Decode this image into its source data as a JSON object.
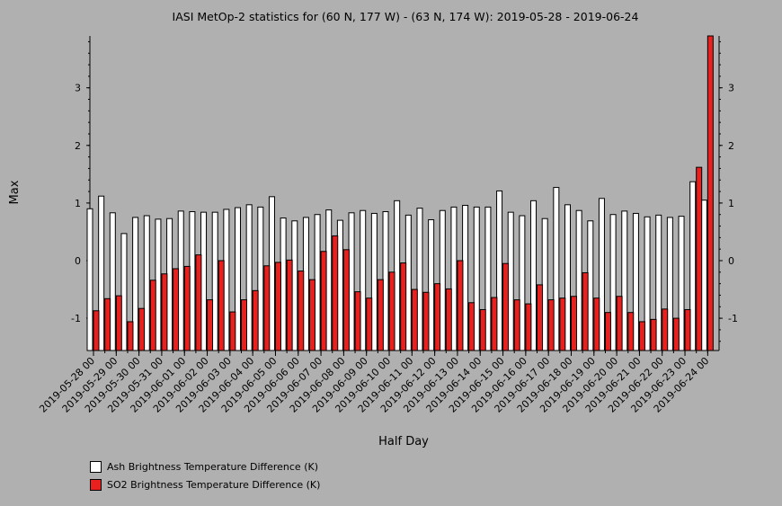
{
  "chart_data": {
    "type": "bar",
    "title": "IASI MetOp-2 statistics for (60 N, 177 W) - (63 N, 174 W): 2019-05-28 - 2019-06-24",
    "xlabel": "Half Day",
    "ylabel": "Max",
    "ylim": [
      -1.56,
      3.9
    ],
    "yticks": [
      -1,
      0,
      1,
      2,
      3
    ],
    "grid": false,
    "legend_position": "bottom-left",
    "categories": [
      "2019-05-28 00",
      "2019-05-28 12",
      "2019-05-29 00",
      "2019-05-29 12",
      "2019-05-30 00",
      "2019-05-30 12",
      "2019-05-31 00",
      "2019-05-31 12",
      "2019-06-01 00",
      "2019-06-01 12",
      "2019-06-02 00",
      "2019-06-02 12",
      "2019-06-03 00",
      "2019-06-03 12",
      "2019-06-04 00",
      "2019-06-04 12",
      "2019-06-05 00",
      "2019-06-05 12",
      "2019-06-06 00",
      "2019-06-06 12",
      "2019-06-07 00",
      "2019-06-07 12",
      "2019-06-08 00",
      "2019-06-08 12",
      "2019-06-09 00",
      "2019-06-09 12",
      "2019-06-10 00",
      "2019-06-10 12",
      "2019-06-11 00",
      "2019-06-11 12",
      "2019-06-12 00",
      "2019-06-12 12",
      "2019-06-13 00",
      "2019-06-13 12",
      "2019-06-14 00",
      "2019-06-14 12",
      "2019-06-15 00",
      "2019-06-15 12",
      "2019-06-16 00",
      "2019-06-16 12",
      "2019-06-17 00",
      "2019-06-17 12",
      "2019-06-18 00",
      "2019-06-18 12",
      "2019-06-19 00",
      "2019-06-19 12",
      "2019-06-20 00",
      "2019-06-20 12",
      "2019-06-21 00",
      "2019-06-21 12",
      "2019-06-22 00",
      "2019-06-22 12",
      "2019-06-23 00",
      "2019-06-23 12",
      "2019-06-24 00"
    ],
    "tick_labels": [
      "2019-05-28 00",
      "2019-05-29 00",
      "2019-05-30 00",
      "2019-05-31 00",
      "2019-06-01 00",
      "2019-06-02 00",
      "2019-06-03 00",
      "2019-06-04 00",
      "2019-06-05 00",
      "2019-06-06 00",
      "2019-06-07 00",
      "2019-06-08 00",
      "2019-06-09 00",
      "2019-06-10 00",
      "2019-06-11 00",
      "2019-06-12 00",
      "2019-06-13 00",
      "2019-06-14 00",
      "2019-06-15 00",
      "2019-06-16 00",
      "2019-06-17 00",
      "2019-06-18 00",
      "2019-06-19 00",
      "2019-06-20 00",
      "2019-06-21 00",
      "2019-06-22 00",
      "2019-06-23 00",
      "2019-06-24 00"
    ],
    "series": [
      {
        "name": "Ash Brightness Temperature Difference (K)",
        "color": "#ffffff",
        "values": [
          0.9,
          1.12,
          0.83,
          0.47,
          0.75,
          0.78,
          0.72,
          0.73,
          0.86,
          0.85,
          0.84,
          0.84,
          0.89,
          0.92,
          0.97,
          0.93,
          1.11,
          0.74,
          0.69,
          0.75,
          0.8,
          0.88,
          0.7,
          0.83,
          0.87,
          0.82,
          0.85,
          1.04,
          0.79,
          0.91,
          0.71,
          0.87,
          0.93,
          0.96,
          0.93,
          0.93,
          1.21,
          0.84,
          0.78,
          1.04,
          0.73,
          1.27,
          0.97,
          0.87,
          0.69,
          1.08,
          0.8,
          0.86,
          0.82,
          0.76,
          0.79,
          0.75,
          0.77,
          1.37,
          1.05
        ]
      },
      {
        "name": "SO2 Brightness Temperature Difference (K)",
        "color": "#e8211f",
        "values": [
          -0.87,
          -0.66,
          -0.61,
          -1.06,
          -0.83,
          -0.34,
          -0.23,
          -0.14,
          -0.1,
          0.1,
          -0.68,
          0.0,
          -0.89,
          -0.68,
          -0.52,
          -0.09,
          -0.03,
          0.01,
          -0.18,
          -0.33,
          0.16,
          0.43,
          0.19,
          -0.54,
          -0.65,
          -0.33,
          -0.2,
          -0.04,
          -0.5,
          -0.55,
          -0.4,
          -0.49,
          0.0,
          -0.73,
          -0.85,
          -0.64,
          -0.05,
          -0.68,
          -0.75,
          -0.42,
          -0.68,
          -0.65,
          -0.62,
          -0.21,
          -0.65,
          -0.9,
          -0.62,
          -0.9,
          -1.06,
          -1.02,
          -0.84,
          -1.0,
          -0.85,
          1.62,
          3.9
        ]
      }
    ]
  }
}
